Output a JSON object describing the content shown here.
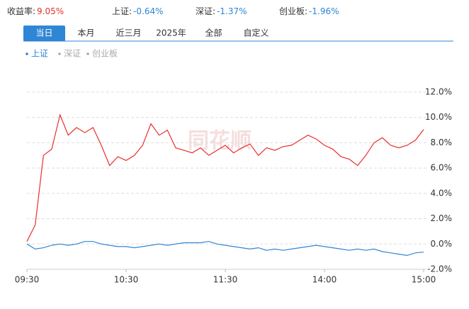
{
  "header": {
    "stats": [
      {
        "label": "收益率:",
        "value": "9.05%",
        "color": "#e8302c"
      },
      {
        "label": "上证:",
        "value": "-0.64%",
        "color": "#2f86d4"
      },
      {
        "label": "深证:",
        "value": "-1.37%",
        "color": "#2f86d4"
      },
      {
        "label": "创业板:",
        "value": "-1.96%",
        "color": "#2f86d4"
      }
    ]
  },
  "tabs": [
    {
      "label": "当日",
      "active": true
    },
    {
      "label": "本月"
    },
    {
      "label": "近三月"
    },
    {
      "label": "2025年"
    },
    {
      "label": "全部"
    },
    {
      "label": "自定义"
    }
  ],
  "legend": [
    {
      "name": "上证",
      "active": true
    },
    {
      "name": "深证"
    },
    {
      "name": "创业板"
    }
  ],
  "watermark": "同花顺",
  "chart_data": {
    "type": "line",
    "x": [
      0,
      5,
      10,
      15,
      20,
      25,
      30,
      35,
      40,
      45,
      50,
      55,
      60,
      65,
      70,
      75,
      80,
      85,
      90,
      95,
      100,
      105,
      110,
      115,
      120,
      125,
      130,
      135,
      140,
      145,
      150,
      155,
      160,
      165,
      170,
      175,
      180,
      185,
      190,
      195,
      200,
      205,
      210,
      215,
      220,
      225,
      230,
      235,
      240
    ],
    "series": [
      {
        "color": "#e8302c",
        "values": [
          0.2,
          1.5,
          7.0,
          7.5,
          10.2,
          8.6,
          9.2,
          8.8,
          9.2,
          7.8,
          6.2,
          6.9,
          6.6,
          7.0,
          7.8,
          9.5,
          8.6,
          9.0,
          7.6,
          7.4,
          7.2,
          7.6,
          7.0,
          7.4,
          7.8,
          7.2,
          7.6,
          7.9,
          7.0,
          7.6,
          7.4,
          7.7,
          7.8,
          8.2,
          8.6,
          8.3,
          7.8,
          7.5,
          6.9,
          6.7,
          6.2,
          7.0,
          8.0,
          8.4,
          7.8,
          7.6,
          7.8,
          8.2,
          9.05
        ]
      },
      {
        "color": "#2f86d4",
        "values": [
          0.0,
          -0.4,
          -0.3,
          -0.1,
          0.0,
          -0.1,
          0.0,
          0.2,
          0.2,
          0.0,
          -0.1,
          -0.2,
          -0.2,
          -0.3,
          -0.2,
          -0.1,
          0.0,
          -0.1,
          0.0,
          0.1,
          0.1,
          0.1,
          0.2,
          0.0,
          -0.1,
          -0.2,
          -0.3,
          -0.4,
          -0.3,
          -0.5,
          -0.4,
          -0.5,
          -0.4,
          -0.3,
          -0.2,
          -0.1,
          -0.2,
          -0.3,
          -0.4,
          -0.5,
          -0.4,
          -0.5,
          -0.4,
          -0.6,
          -0.7,
          -0.8,
          -0.9,
          -0.7,
          -0.64
        ]
      }
    ],
    "xlim": [
      0,
      240
    ],
    "xticks": [
      {
        "value": 0,
        "label": "09:30"
      },
      {
        "value": 60,
        "label": "10:30"
      },
      {
        "value": 120,
        "label": "11:30"
      },
      {
        "value": 180,
        "label": "14:00"
      },
      {
        "value": 240,
        "label": "15:00"
      }
    ],
    "ylim": [
      -2,
      12
    ],
    "yticks": [
      {
        "value": -2,
        "label": "-2.0%"
      },
      {
        "value": 0,
        "label": "0.0%"
      },
      {
        "value": 2,
        "label": "2.0%"
      },
      {
        "value": 4,
        "label": "4.0%"
      },
      {
        "value": 6,
        "label": "6.0%"
      },
      {
        "value": 8,
        "label": "8.0%"
      },
      {
        "value": 10,
        "label": "10.0%"
      },
      {
        "value": 12,
        "label": "12.0%"
      }
    ],
    "grid": true
  }
}
